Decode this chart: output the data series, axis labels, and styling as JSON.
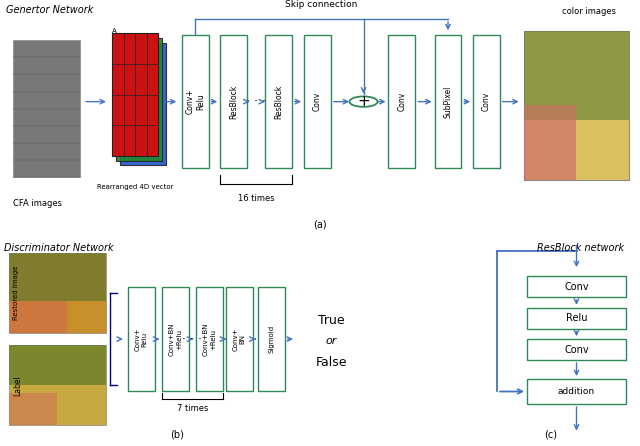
{
  "bg_color": "#ffffff",
  "arrow_color": "#4472c4",
  "box_color": "#2e8b57",
  "box_facecolor": "#ffffff",
  "text_color": "#000000",
  "panel_a_title": "Genertor Network",
  "panel_b_title": "Discriminator Network",
  "panel_c_title": "ResBlock network",
  "skip_label": "Skip connection",
  "label_a": "(a)",
  "label_b": "(b)",
  "label_c": "(c)",
  "color_images_label": "color images",
  "cfa_label": "CFA images",
  "rearranged_label": "Rearranged 4D vector",
  "16times_label": "16 times",
  "7times_label": "7 times",
  "true_text": "True",
  "or_text": "or",
  "false_text": "False",
  "restored_label": "Restored image",
  "label_label": "Label",
  "addition_label": "addition",
  "boxes_a": [
    "Conv+\nRelu",
    "ResBlock",
    "ResBlock",
    "Conv",
    "Conv",
    "SubPixel",
    "Conv"
  ],
  "boxes_b": [
    "Conv+\nRelu",
    "Conv+BN\n+Relu",
    "Conv+BN\n+Relu",
    "Conv+\nBN",
    "Sigmoid"
  ]
}
